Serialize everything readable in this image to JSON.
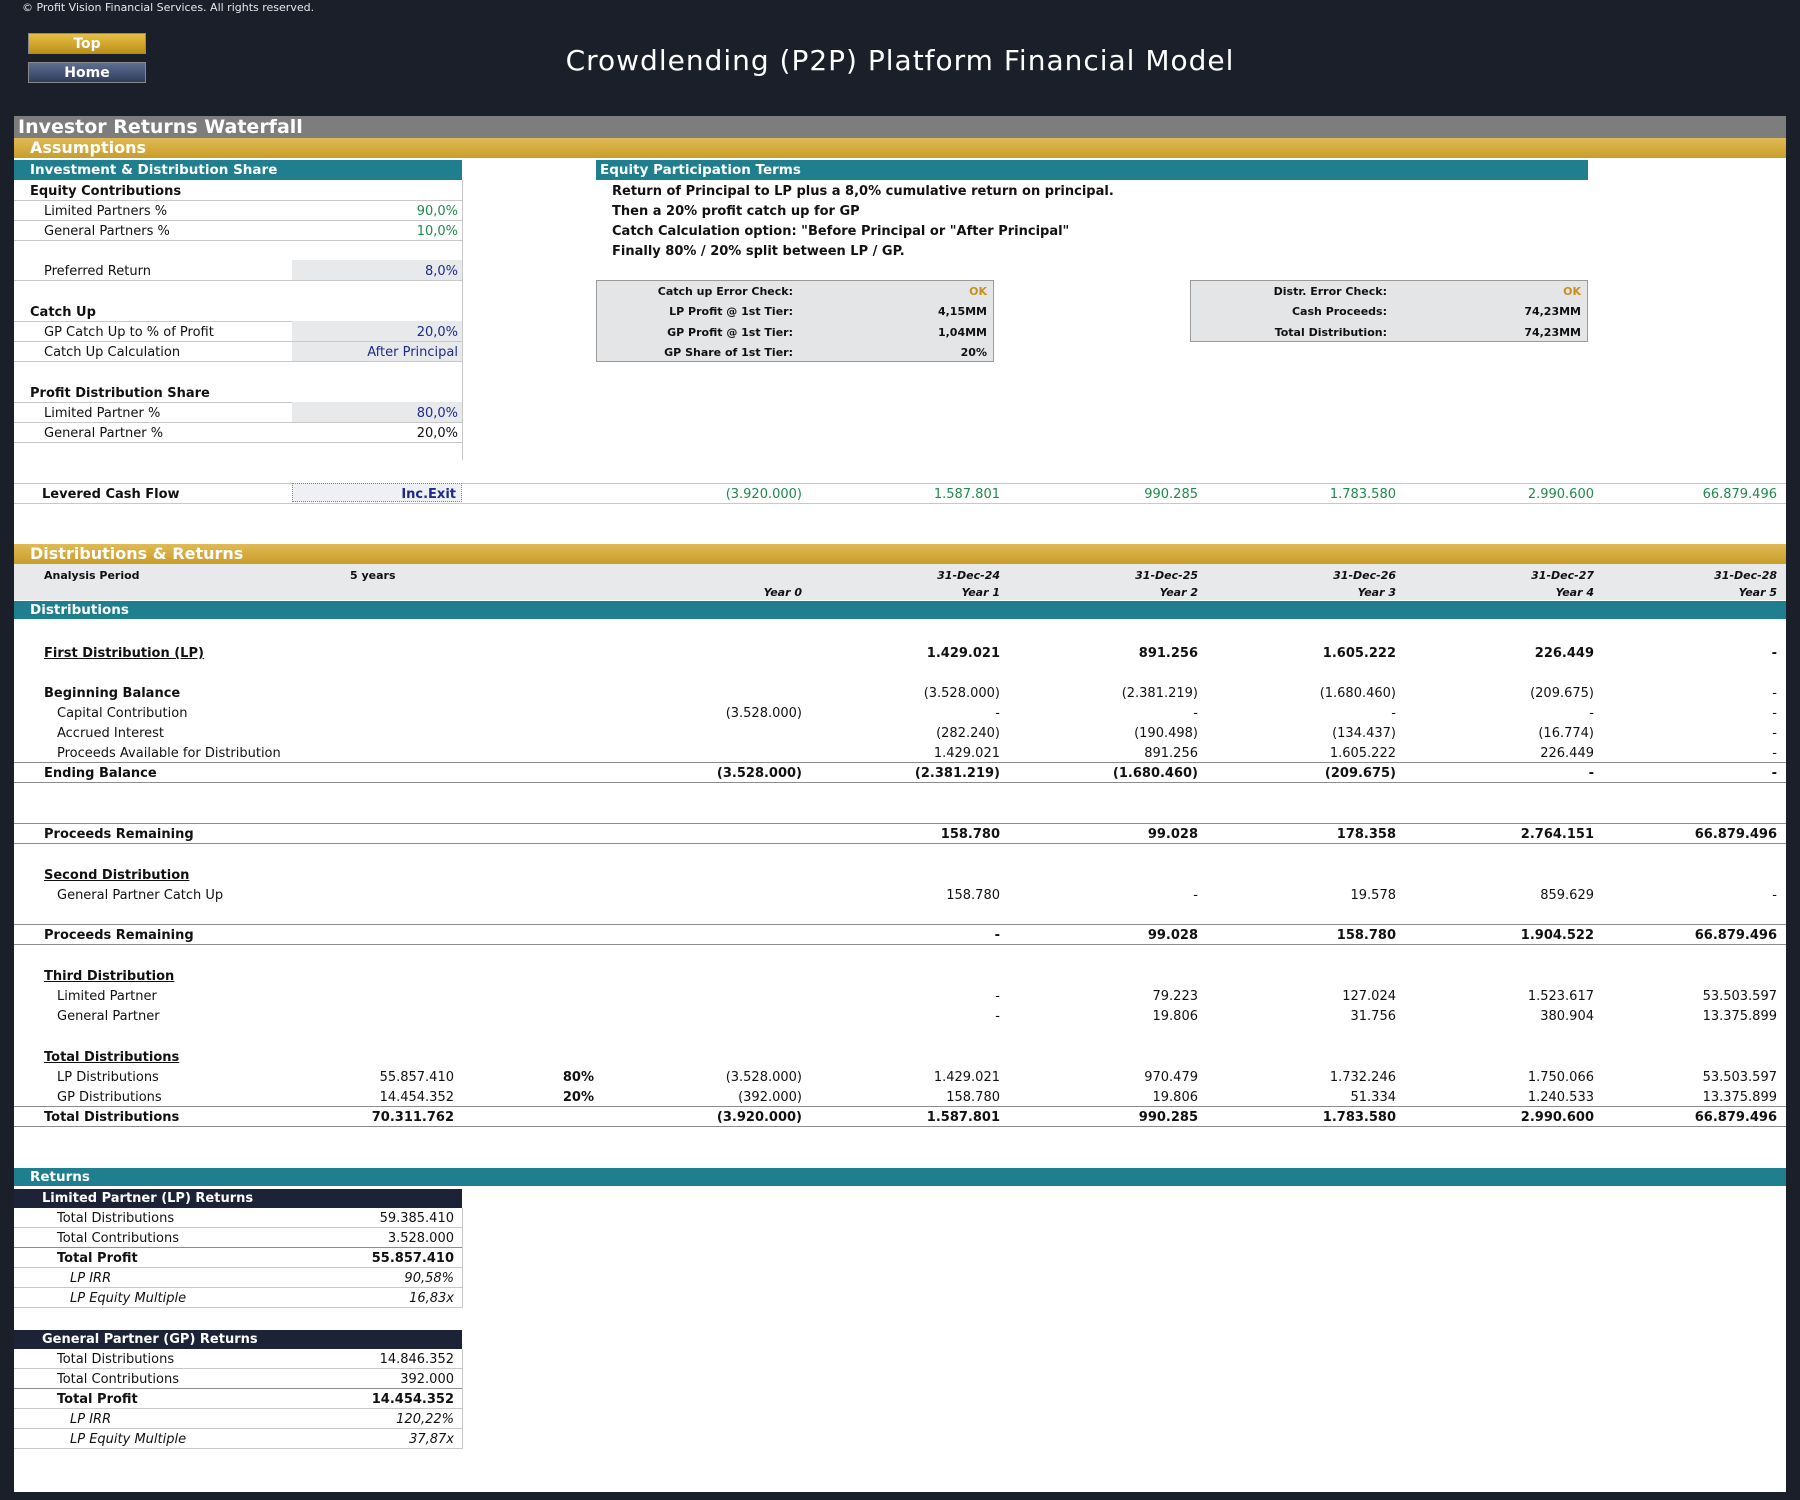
{
  "copyright": "© Profit Vision Financial Services. All rights reserved.",
  "nav": {
    "top": "Top",
    "home": "Home"
  },
  "title": "Crowdlending (P2P) Platform Financial Model",
  "section_title": "Investor Returns Waterfall",
  "assumptions": {
    "header": "Assumptions",
    "inv_header": "Investment & Distribution Share",
    "equity_contributions": "Equity Contributions",
    "lp_pct_label": "Limited Partners %",
    "lp_pct": "90,0%",
    "gp_pct_label": "General Partners %",
    "gp_pct": "10,0%",
    "pref_label": "Preferred Return",
    "pref": "8,0%",
    "catch_up": "Catch Up",
    "gp_catch_label": "GP Catch Up to % of Profit",
    "gp_catch": "20,0%",
    "catch_calc_label": "Catch Up Calculation",
    "catch_calc": "After Principal",
    "profit_share": "Profit Distribution Share",
    "lp_share_label": "Limited Partner %",
    "lp_share": "80,0%",
    "gp_share_label": "General Partner %",
    "gp_share": "20,0%",
    "terms_header": "Equity Participation Terms",
    "terms": [
      "Return of Principal to LP plus a 8,0% cumulative return on principal.",
      "Then a 20% profit catch up for GP",
      "Catch Calculation option: \"Before Principal or \"After Principal\"",
      "Finally 80% / 20% split between LP / GP."
    ],
    "check1": {
      "l1": "Catch up Error Check:",
      "v1": "OK",
      "l2": "LP Profit @ 1st Tier:",
      "v2": "4,15MM",
      "l3": "GP Profit @ 1st Tier:",
      "v3": "1,04MM",
      "l4": "GP Share of 1st Tier:",
      "v4": "20%"
    },
    "check2": {
      "l1": "Distr. Error Check:",
      "v1": "OK",
      "l2": "Cash Proceeds:",
      "v2": "74,23MM",
      "l3": "Total Distribution:",
      "v3": "74,23MM"
    },
    "levered_label": "Levered Cash Flow",
    "levered_mode": "Inc.Exit",
    "levered_values": [
      "(3.920.000)",
      "1.587.801",
      "990.285",
      "1.783.580",
      "2.990.600",
      "66.879.496"
    ]
  },
  "dist": {
    "header": "Distributions & Returns",
    "analysis_label": "Analysis Period",
    "analysis_value": "5 years",
    "dates": [
      "31-Dec-24",
      "31-Dec-25",
      "31-Dec-26",
      "31-Dec-27",
      "31-Dec-28"
    ],
    "years": [
      "Year 0",
      "Year 1",
      "Year 2",
      "Year 3",
      "Year 4",
      "Year 5"
    ],
    "distributions_header": "Distributions",
    "first": {
      "label": "First Distribution (LP)",
      "v": [
        "",
        "1.429.021",
        "891.256",
        "1.605.222",
        "226.449",
        "-"
      ]
    },
    "beginning": {
      "label": "Beginning Balance",
      "v": [
        "",
        "(3.528.000)",
        "(2.381.219)",
        "(1.680.460)",
        "(209.675)",
        "-"
      ]
    },
    "capital": {
      "label": "Capital Contribution",
      "v": [
        "(3.528.000)",
        "-",
        "-",
        "-",
        "-",
        "-"
      ]
    },
    "accrued": {
      "label": "Accrued Interest",
      "v": [
        "",
        "(282.240)",
        "(190.498)",
        "(134.437)",
        "(16.774)",
        "-"
      ]
    },
    "proceeds_avail": {
      "label": "Proceeds Available for Distribution",
      "v": [
        "",
        "1.429.021",
        "891.256",
        "1.605.222",
        "226.449",
        "-"
      ]
    },
    "ending": {
      "label": "Ending Balance",
      "v": [
        "(3.528.000)",
        "(2.381.219)",
        "(1.680.460)",
        "(209.675)",
        "-",
        "-"
      ]
    },
    "remaining1": {
      "label": "Proceeds Remaining",
      "v": [
        "",
        "158.780",
        "99.028",
        "178.358",
        "2.764.151",
        "66.879.496"
      ]
    },
    "second": {
      "label": "Second Distribution"
    },
    "gp_catch": {
      "label": "General Partner Catch Up",
      "v": [
        "",
        "158.780",
        "-",
        "19.578",
        "859.629",
        "-"
      ]
    },
    "remaining2": {
      "label": "Proceeds Remaining",
      "v": [
        "",
        "-",
        "99.028",
        "158.780",
        "1.904.522",
        "66.879.496"
      ]
    },
    "third": {
      "label": "Third Distribution"
    },
    "third_lp": {
      "label": "Limited Partner",
      "v": [
        "",
        "-",
        "79.223",
        "127.024",
        "1.523.617",
        "53.503.597"
      ]
    },
    "third_gp": {
      "label": "General Partner",
      "v": [
        "",
        "-",
        "19.806",
        "31.756",
        "380.904",
        "13.375.899"
      ]
    },
    "total_header": "Total Distributions",
    "lp_dist": {
      "label": "LP Distributions",
      "total": "55.857.410",
      "pct": "80%",
      "v": [
        "(3.528.000)",
        "1.429.021",
        "970.479",
        "1.732.246",
        "1.750.066",
        "53.503.597"
      ]
    },
    "gp_dist": {
      "label": "GP Distributions",
      "total": "14.454.352",
      "pct": "20%",
      "v": [
        "(392.000)",
        "158.780",
        "19.806",
        "51.334",
        "1.240.533",
        "13.375.899"
      ]
    },
    "tot_dist": {
      "label": "Total Distributions",
      "total": "70.311.762",
      "v": [
        "(3.920.000)",
        "1.587.801",
        "990.285",
        "1.783.580",
        "2.990.600",
        "66.879.496"
      ]
    }
  },
  "returns": {
    "header": "Returns",
    "lp": {
      "header": "Limited Partner (LP) Returns",
      "td_label": "Total Distributions",
      "td": "59.385.410",
      "tc_label": "Total Contributions",
      "tc": "3.528.000",
      "tp_label": "Total Profit",
      "tp": "55.857.410",
      "irr_label": "LP IRR",
      "irr": "90,58%",
      "mult_label": "LP Equity Multiple",
      "mult": "16,83x"
    },
    "gp": {
      "header": "General Partner (GP) Returns",
      "td_label": "Total Distributions",
      "td": "14.846.352",
      "tc_label": "Total Contributions",
      "tc": "392.000",
      "tp_label": "Total Profit",
      "tp": "14.454.352",
      "irr_label": "LP IRR",
      "irr": "120,22%",
      "mult_label": "LP Equity Multiple",
      "mult": "37,87x"
    }
  },
  "colors": {
    "teal": "#1f7f8e",
    "gold": "#d4aa3c",
    "navy": "#1c2336",
    "green": "#1f8a4c",
    "blue": "#1f2a8c",
    "background": "#1a1f29"
  }
}
